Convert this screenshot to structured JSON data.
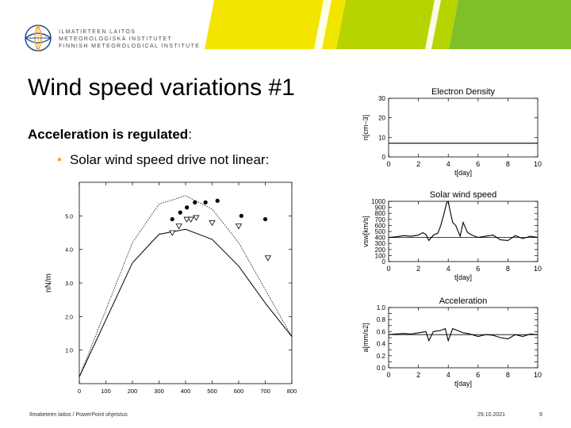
{
  "header": {
    "org_lines": [
      "ILMATIETEEN LAITOS",
      "METEOROLOGISKA INSTITUTET",
      "FINNISH METEOROLOGICAL INSTITUTE"
    ],
    "colors": {
      "yellow": "#f2e600",
      "lime": "#b7d400",
      "green": "#7fbf2a",
      "white_stripe": "#ffffff"
    }
  },
  "slide": {
    "title": "Wind speed variations #1",
    "subhead_bold": "Acceleration is regulated",
    "subhead_colon": ":",
    "bullet_text": "Solar wind speed drive not linear:",
    "bullet_marker": "•",
    "bullet_color": "#f5a623"
  },
  "footer": {
    "left": "Ilmatieteen laitos / PowerPoint ohjeistus",
    "date": "29.10.2021",
    "page": "9"
  },
  "chart_data": [
    {
      "type": "scatter",
      "title": "",
      "xlabel": "",
      "ylabel": "nN/m",
      "xlim": [
        0,
        800
      ],
      "ylim": [
        0,
        60
      ],
      "x_ticks": [
        0,
        100,
        200,
        300,
        400,
        500,
        600,
        700,
        800
      ],
      "y_ticks": [
        10,
        20,
        30,
        40,
        50
      ],
      "y_tick_labels": [
        "1.0",
        "2.0",
        "3.0",
        "4.0",
        "5.0"
      ],
      "series": [
        {
          "kind": "dotted-curve",
          "points": [
            [
              0,
              2
            ],
            [
              100,
              22
            ],
            [
              200,
              42
            ],
            [
              300,
              53.5
            ],
            [
              400,
              56
            ],
            [
              500,
              52
            ],
            [
              600,
              42
            ],
            [
              700,
              28
            ],
            [
              800,
              14
            ]
          ]
        },
        {
          "kind": "solid-curve",
          "points": [
            [
              0,
              2
            ],
            [
              100,
              19
            ],
            [
              200,
              36
            ],
            [
              300,
              44.5
            ],
            [
              400,
              46
            ],
            [
              500,
              43
            ],
            [
              600,
              35
            ],
            [
              700,
              24
            ],
            [
              800,
              14
            ]
          ]
        },
        {
          "kind": "filled-dots",
          "points": [
            [
              350,
              49
            ],
            [
              380,
              51
            ],
            [
              405,
              52.5
            ],
            [
              435,
              54
            ],
            [
              475,
              54
            ],
            [
              520,
              54.5
            ],
            [
              610,
              50
            ],
            [
              700,
              49
            ]
          ]
        },
        {
          "kind": "triangles",
          "points": [
            [
              350,
              45
            ],
            [
              375,
              47
            ],
            [
              405,
              49
            ],
            [
              420,
              49
            ],
            [
              440,
              49.5
            ],
            [
              500,
              48
            ],
            [
              600,
              47
            ],
            [
              710,
              37.5
            ]
          ]
        }
      ]
    },
    {
      "type": "line",
      "title": "Electron Density",
      "xlabel": "t[day]",
      "ylabel": "n[cm−3]",
      "xlim": [
        0,
        10
      ],
      "ylim": [
        0,
        30
      ],
      "x_ticks": [
        0,
        2,
        4,
        6,
        8,
        10
      ],
      "y_ticks": [
        0,
        10,
        20,
        30
      ],
      "series": [
        {
          "x": [
            0,
            10
          ],
          "y": [
            7,
            7
          ]
        }
      ]
    },
    {
      "type": "line",
      "title": "Solar wind speed",
      "xlabel": "t[day]",
      "ylabel": "vsw[km/s]",
      "xlim": [
        0,
        10
      ],
      "ylim": [
        0,
        1000
      ],
      "x_ticks": [
        0,
        2,
        4,
        6,
        8,
        10
      ],
      "y_ticks": [
        0,
        100,
        200,
        300,
        400,
        500,
        600,
        700,
        800,
        900,
        1000
      ],
      "series": [
        {
          "x": [
            0,
            0.5,
            1,
            1.5,
            2,
            2.3,
            2.5,
            2.7,
            3,
            3.3,
            3.5,
            3.7,
            3.9,
            4,
            4.1,
            4.3,
            4.5,
            4.8,
            5,
            5.3,
            5.6,
            6,
            6.5,
            7,
            7.5,
            8,
            8.5,
            9,
            9.5,
            10
          ],
          "y": [
            400,
            410,
            430,
            420,
            440,
            480,
            450,
            350,
            440,
            470,
            600,
            780,
            980,
            1000,
            870,
            650,
            600,
            420,
            650,
            480,
            440,
            400,
            420,
            440,
            360,
            350,
            430,
            380,
            420,
            400
          ]
        },
        {
          "x": [
            0,
            10
          ],
          "y": [
            400,
            400
          ]
        }
      ]
    },
    {
      "type": "line",
      "title": "Acceleration",
      "xlabel": "t[day]",
      "ylabel": "a[mm/s2]",
      "xlim": [
        0,
        10
      ],
      "ylim": [
        0,
        1.0
      ],
      "x_ticks": [
        0,
        2,
        4,
        6,
        8,
        10
      ],
      "y_ticks": [
        0.0,
        0.1,
        0.2,
        0.3,
        0.4,
        0.5,
        0.6,
        0.7,
        0.8,
        0.9,
        1.0
      ],
      "y_tick_labels": [
        "0.0",
        "",
        "0.2",
        "",
        "0.4",
        "",
        "0.6",
        "",
        "0.8",
        "",
        "1.0"
      ],
      "series": [
        {
          "x": [
            0,
            0.5,
            1,
            1.5,
            2,
            2.5,
            2.7,
            3,
            3.5,
            3.8,
            4,
            4.3,
            4.6,
            5,
            5.3,
            5.6,
            6,
            6.5,
            7,
            7.5,
            8,
            8.5,
            9,
            9.5,
            10
          ],
          "y": [
            0.55,
            0.56,
            0.57,
            0.56,
            0.58,
            0.6,
            0.45,
            0.6,
            0.62,
            0.65,
            0.45,
            0.65,
            0.62,
            0.58,
            0.57,
            0.55,
            0.52,
            0.55,
            0.54,
            0.5,
            0.48,
            0.55,
            0.52,
            0.56,
            0.55
          ]
        },
        {
          "x": [
            0,
            10
          ],
          "y": [
            0.55,
            0.55
          ]
        }
      ]
    }
  ]
}
